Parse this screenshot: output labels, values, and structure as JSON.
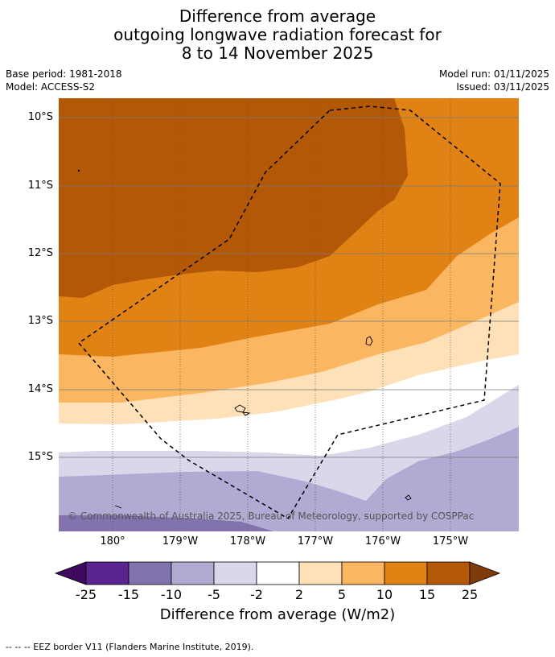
{
  "title": {
    "line1": "Difference from average",
    "line2": "outgoing longwave radiation forecast for",
    "line3": "8 to 14 November 2025"
  },
  "meta": {
    "base_period": "Base period: 1981-2018",
    "model": "Model: ACCESS-S2",
    "model_run": "Model run: 01/11/2025",
    "issued": "Issued: 03/11/2025"
  },
  "map": {
    "lat_labels": [
      "10°S",
      "11°S",
      "12°S",
      "13°S",
      "14°S",
      "15°S"
    ],
    "lon_labels": [
      "180°",
      "179°W",
      "178°W",
      "177°W",
      "176°W",
      "175°W"
    ],
    "copyright": "© Commonwealth of Australia 2025, Bureau of Meteorology, supported by COSPPac"
  },
  "legend": {
    "ticks": [
      "-25",
      "-15",
      "-10",
      "-5",
      "-2",
      "2",
      "5",
      "10",
      "15",
      "25"
    ],
    "colors": [
      "#3f0a5e",
      "#5a2590",
      "#8272ad",
      "#b1aad2",
      "#d9d8ea",
      "#ffffff",
      "#fee1b8",
      "#fbb661",
      "#e08214",
      "#b35806",
      "#7f3b08"
    ],
    "title": "Difference from average (W/m2)"
  },
  "footer": "--  --  -- EEZ border V11 (Flanders Marine Institute, 2019)."
}
